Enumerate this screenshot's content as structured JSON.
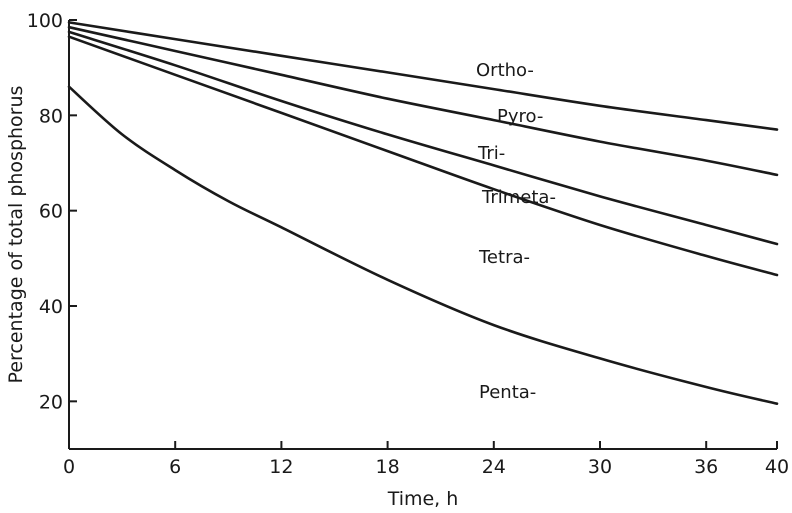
{
  "chart_data": {
    "type": "line",
    "xlabel": "Time, h",
    "ylabel": "Percentage of total phosphorus",
    "xlim": [
      0,
      40
    ],
    "ylim": [
      10,
      100
    ],
    "xticks": [
      0,
      6,
      12,
      18,
      24,
      30,
      36,
      40
    ],
    "yticks": [
      20,
      40,
      60,
      80,
      100
    ],
    "grid": false,
    "series": [
      {
        "name": "Ortho-",
        "x": [
          0,
          6,
          12,
          18,
          24,
          30,
          36,
          40
        ],
        "y": [
          99.5,
          96,
          92.5,
          89,
          85.5,
          82,
          79,
          77
        ]
      },
      {
        "name": "Pyro-",
        "x": [
          0,
          6,
          12,
          18,
          24,
          30,
          36,
          40
        ],
        "y": [
          98.5,
          93.5,
          88.5,
          83.5,
          79,
          74.5,
          70.5,
          67.5
        ]
      },
      {
        "name": "Tri-",
        "x": [
          0,
          6,
          12,
          18,
          24,
          30,
          36,
          40
        ],
        "y": [
          97.5,
          90.5,
          83,
          76,
          69.5,
          63,
          57,
          53
        ]
      },
      {
        "name": "Trimeta-",
        "x": [
          0,
          6,
          12,
          18,
          24,
          30,
          36,
          40
        ],
        "y": [
          96.5,
          88.5,
          80.5,
          72.5,
          64.5,
          57,
          50.5,
          46.5
        ]
      },
      {
        "name": "Tetra-",
        "x": [],
        "y": []
      },
      {
        "name": "Penta-",
        "x": [
          0,
          3,
          6,
          9,
          12,
          18,
          24,
          30,
          36,
          40
        ],
        "y": [
          86,
          76,
          68.5,
          62,
          56.5,
          45.5,
          36,
          29,
          23,
          19.5
        ]
      }
    ]
  }
}
